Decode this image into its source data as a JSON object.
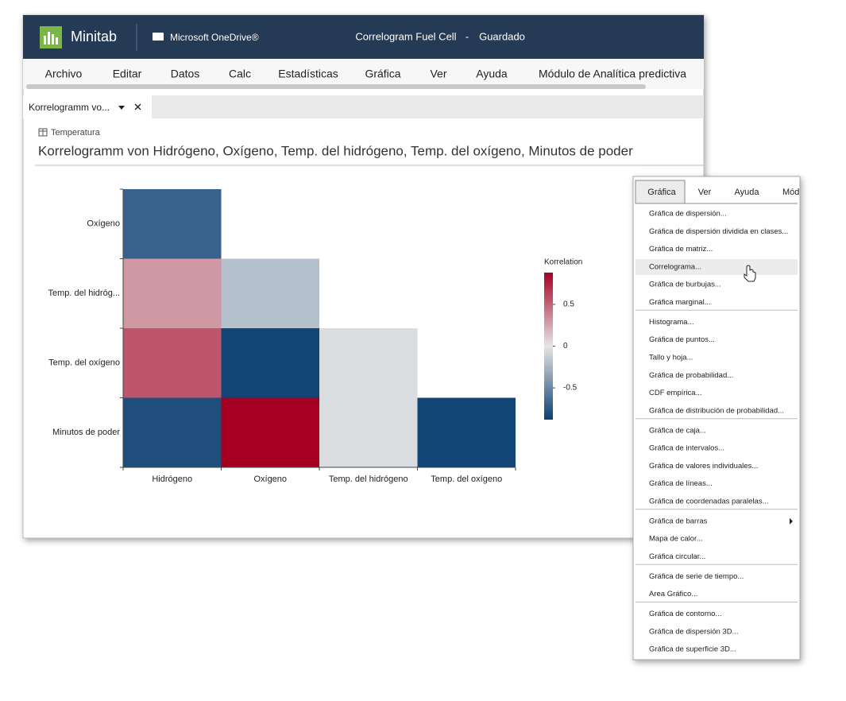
{
  "app": {
    "name": "Minitab",
    "storage": "Microsoft OneDrive®",
    "file_name": "Correlogram Fuel Cell",
    "separator": "-",
    "status": "Guardado"
  },
  "menu": [
    "Archivo",
    "Editar",
    "Datos",
    "Calc",
    "Estadísticas",
    "Gráfica",
    "Ver",
    "Ayuda",
    "Módulo de Analítica predictiva"
  ],
  "tab": "Korrelogramm vo...",
  "sheet": "Temperatura",
  "chart_data": {
    "type": "heatmap",
    "title": "Korrelogramm von Hidrógeno, Oxígeno, Temp. del hidrógeno, Temp. del oxígeno, Minutos de poder",
    "x_categories": [
      "Hidrógeno",
      "Oxígeno",
      "Temp. del hidrógeno",
      "Temp. del oxígeno"
    ],
    "y_categories": [
      "Oxígeno",
      "Temp. del hidróg...",
      "Temp. del oxígeno",
      "Minutos de poder"
    ],
    "values": [
      [
        -0.7,
        null,
        null,
        null
      ],
      [
        0.3,
        -0.2,
        null,
        null
      ],
      [
        0.55,
        -0.85,
        -0.05,
        null
      ],
      [
        -0.8,
        0.88,
        -0.05,
        -0.85
      ]
    ],
    "colorbar_title": "Korrelation",
    "clim": [
      -0.88,
      0.88
    ],
    "cticks": [
      0.5,
      0,
      -0.5
    ],
    "colors": {
      "negative": "#0b3f73",
      "zero": "#e6e6e6",
      "positive": "#a50021"
    }
  },
  "dropdown": {
    "tabs": [
      "Gráfica",
      "Ver",
      "Ayuda",
      "Mód"
    ],
    "groups": [
      [
        "Gráfica de dispersión...",
        "Gráfica de dispersión dividida en clases...",
        "Gráfica de matriz...",
        "Correlograma...",
        "Gráfica de burbujas...",
        "Gráfica marginal..."
      ],
      [
        "Histograma...",
        "Gráfica de puntos...",
        "Tallo y hoja...",
        "Gráfica de probabilidad...",
        "CDF empírica...",
        "Gráfica de distribución de probabilidad..."
      ],
      [
        "Gráfica de caja...",
        "Gráfica de intervalos...",
        "Gráfica de valores individuales...",
        "Gráfica de líneas...",
        "Gráfica de coordenadas paralelas..."
      ],
      [
        "Gráfica de barras",
        "Mapa de calor...",
        "Gráfica circular..."
      ],
      [
        "Gráfica de serie de tiempo...",
        "Area Gráfico..."
      ],
      [
        "Gráfica de contorno...",
        "Gráfica de dispersión 3D...",
        "Gráfica de superficie 3D..."
      ]
    ]
  }
}
